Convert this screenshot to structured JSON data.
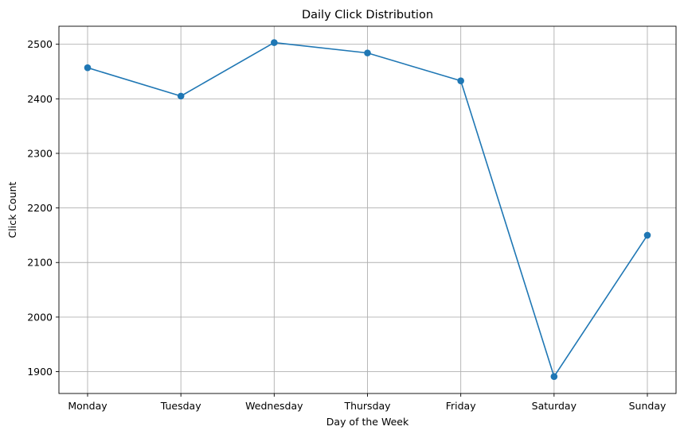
{
  "chart_data": {
    "type": "line",
    "title": "Daily Click Distribution",
    "xlabel": "Day of the Week",
    "ylabel": "Click Count",
    "categories": [
      "Monday",
      "Tuesday",
      "Wednesday",
      "Thursday",
      "Friday",
      "Saturday",
      "Sunday"
    ],
    "series": [
      {
        "values": [
          2457,
          2405,
          2503,
          2484,
          2433,
          1891,
          2150
        ],
        "color": "#1f77b4",
        "marker": "circle"
      }
    ],
    "yticks": [
      1900,
      2000,
      2100,
      2200,
      2300,
      2400,
      2500
    ],
    "ylim": [
      1860,
      2533
    ],
    "grid": true,
    "grid_color": "#b0b0b0"
  }
}
